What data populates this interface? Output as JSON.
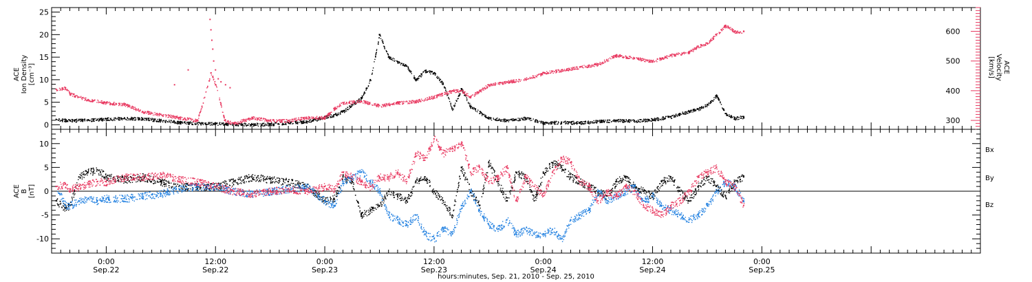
{
  "colors": {
    "black": "#000000",
    "pink": "#e8375f",
    "blue": "#1f7fe0"
  },
  "chart_data": {
    "type": "scatter",
    "title": "",
    "xlabel": "hours:minutes, Sep. 21, 2010 - Sep. 25, 2010",
    "x_unit": "hours since 2010-09-21 00:00",
    "xlim": [
      18,
      120
    ],
    "x_ticks": [
      {
        "x": 24,
        "time": "0:00",
        "date": "Sep.22"
      },
      {
        "x": 36,
        "time": "12:00",
        "date": "Sep.22"
      },
      {
        "x": 48,
        "time": "0:00",
        "date": "Sep.23"
      },
      {
        "x": 60,
        "time": "12:00",
        "date": "Sep.23"
      },
      {
        "x": 72,
        "time": "0:00",
        "date": "Sep.24"
      },
      {
        "x": 84,
        "time": "12:00",
        "date": "Sep.24"
      },
      {
        "x": 96,
        "time": "0:00",
        "date": "Sep.25"
      }
    ],
    "panels": [
      {
        "name": "top",
        "left_axis": {
          "label_lines": [
            "ACE",
            "Ion Density",
            "[cm⁻³]"
          ],
          "ylim": [
            -1,
            26
          ],
          "ticks": [
            "0",
            "5",
            "10",
            "15",
            "20",
            "25"
          ],
          "tick_values": [
            0,
            5,
            10,
            15,
            20,
            25
          ]
        },
        "right_axis": {
          "label_lines": [
            "ACE",
            "Velocity",
            "[km/s]"
          ],
          "ylim": [
            270,
            680
          ],
          "ticks": [
            "300",
            "400",
            "500",
            "600"
          ],
          "tick_values": [
            300,
            400,
            500,
            600
          ]
        },
        "series": [
          {
            "axis": "left",
            "color": "#000000",
            "x": [
              18.5,
              20,
              22,
              24,
              26,
              28,
              30,
              32,
              34,
              36,
              38,
              40,
              42,
              44,
              46,
              47,
              48,
              49,
              50,
              51,
              52,
              53,
              54,
              55,
              56,
              57,
              58,
              59,
              60,
              61,
              62,
              63,
              64,
              66,
              68,
              70,
              72,
              74,
              76,
              78,
              80,
              82,
              84,
              86,
              87,
              88,
              89,
              90,
              91,
              92,
              93,
              94
            ],
            "y": [
              1.2,
              1.0,
              1.1,
              1.3,
              1.5,
              1.4,
              1.0,
              0.6,
              0.4,
              0.3,
              0.2,
              0.1,
              0.2,
              0.5,
              0.8,
              1.2,
              1.8,
              2.2,
              3.0,
              4.5,
              6.0,
              10.0,
              20.0,
              15.0,
              14.0,
              13.0,
              10.0,
              12.0,
              11.5,
              9.0,
              3.5,
              8.0,
              4.0,
              1.5,
              1.0,
              1.5,
              0.5,
              0.6,
              0.5,
              0.8,
              1.0,
              0.9,
              1.2,
              1.8,
              2.5,
              3.0,
              3.5,
              4.5,
              6.5,
              2.5,
              1.5,
              1.8
            ]
          },
          {
            "axis": "right",
            "color": "#e8375f",
            "x": [
              18.5,
              19.5,
              20,
              22,
              24,
              26,
              28,
              30,
              32,
              34,
              35.5,
              36,
              37,
              38,
              40,
              42,
              44,
              46,
              48,
              49,
              50,
              52,
              54,
              56,
              58,
              60,
              62,
              63,
              64,
              66,
              68,
              70,
              72,
              74,
              76,
              78,
              80,
              82,
              84,
              86,
              88,
              89,
              90,
              91,
              92,
              93,
              94
            ],
            "y": [
              405,
              410,
              390,
              370,
              360,
              355,
              330,
              320,
              310,
              300,
              460,
              420,
              300,
              290,
              310,
              300,
              300,
              310,
              310,
              340,
              360,
              365,
              350,
              360,
              365,
              380,
              400,
              400,
              380,
              420,
              430,
              440,
              460,
              470,
              480,
              490,
              520,
              510,
              500,
              520,
              530,
              550,
              560,
              590,
              620,
              600,
              600
            ]
          },
          {
            "axis": "right",
            "color": "#e8375f",
            "style": "sparse",
            "x": [
              35.4,
              35.5,
              35.6,
              35.7,
              35.8,
              36.0,
              36.3,
              36.6,
              37.1,
              37.6,
              33.0,
              31.5
            ],
            "y": [
              640,
              605,
              570,
              540,
              500,
              470,
              440,
              430,
              420,
              410,
              470,
              420
            ]
          }
        ]
      },
      {
        "name": "bottom",
        "left_axis": {
          "label_lines": [
            "ACE",
            "B",
            "[nT]"
          ],
          "ylim": [
            -13,
            13
          ],
          "ticks": [
            "-10",
            "-5",
            "0",
            "5",
            "10"
          ],
          "tick_values": [
            -10,
            -5,
            0,
            5,
            10
          ]
        },
        "zero_line": true,
        "legend": {
          "placement": "right",
          "entries": [
            "Bx",
            "By",
            "Bz"
          ]
        },
        "series": [
          {
            "name": "Bx",
            "color": "#000000",
            "x": [
              18.5,
              19.5,
              20,
              21,
              22,
              23,
              24,
              26,
              28,
              30,
              32,
              34,
              36,
              38,
              40,
              42,
              44,
              46,
              48,
              49,
              50,
              51,
              52,
              53,
              54,
              55,
              56,
              57,
              58,
              59,
              60,
              61,
              62,
              63,
              64,
              65,
              66,
              67,
              68,
              69,
              70,
              71,
              72,
              73,
              74,
              75,
              76,
              77,
              78,
              79,
              80,
              81,
              82,
              83,
              84,
              85,
              86,
              87,
              88,
              89,
              90,
              91,
              92,
              93,
              94
            ],
            "y": [
              -2,
              -3.5,
              -3,
              3,
              4,
              4.5,
              3,
              2.5,
              3,
              2,
              1,
              1,
              1,
              2,
              3,
              2.5,
              2,
              1,
              -2,
              -1.5,
              3,
              2,
              -5,
              -4,
              -3,
              0,
              -1,
              -2,
              2,
              3,
              0,
              -2,
              -5,
              5,
              0,
              -3,
              6,
              2,
              -2,
              4,
              3,
              -2,
              4,
              6,
              5,
              3,
              2,
              1,
              0,
              -1,
              2,
              3,
              1,
              0,
              -1,
              2,
              3,
              0,
              -2,
              1,
              3,
              1,
              -1,
              2,
              3
            ]
          },
          {
            "name": "By",
            "color": "#1f7fe0",
            "x": [
              18.5,
              19.5,
              20,
              21,
              22,
              23,
              24,
              26,
              28,
              30,
              32,
              34,
              36,
              38,
              40,
              42,
              44,
              46,
              48,
              49,
              50,
              51,
              52,
              53,
              54,
              55,
              56,
              57,
              58,
              59,
              60,
              61,
              62,
              63,
              64,
              65,
              66,
              67,
              68,
              69,
              70,
              71,
              72,
              73,
              74,
              75,
              76,
              77,
              78,
              79,
              80,
              81,
              82,
              83,
              84,
              85,
              86,
              87,
              88,
              89,
              90,
              91,
              92,
              93,
              94
            ],
            "y": [
              1,
              -3,
              -3,
              -2,
              -1.5,
              -2,
              -1.5,
              -1.5,
              -1,
              -0.5,
              0.5,
              1,
              1,
              0,
              -0.5,
              0,
              0.5,
              1,
              -2,
              -3,
              2,
              3,
              4,
              2,
              0,
              -5,
              -6,
              -7,
              -5,
              -9,
              -10,
              -8,
              -9,
              -3,
              0,
              -4,
              -7,
              -8,
              -6,
              -9,
              -8,
              -9,
              -9,
              -8,
              -10,
              -6,
              -5,
              -4,
              0,
              -2,
              -1,
              0,
              1,
              -2,
              -1,
              -3,
              -4,
              -5,
              -6,
              -5,
              -3,
              0,
              2,
              1,
              -2
            ]
          },
          {
            "name": "Bz",
            "color": "#e8375f",
            "x": [
              18.5,
              19.5,
              20,
              21,
              22,
              23,
              24,
              26,
              28,
              30,
              32,
              34,
              36,
              38,
              40,
              42,
              44,
              46,
              48,
              49,
              50,
              51,
              52,
              53,
              54,
              55,
              56,
              57,
              58,
              59,
              60,
              61,
              62,
              63,
              64,
              65,
              66,
              67,
              68,
              69,
              70,
              71,
              72,
              73,
              74,
              75,
              76,
              77,
              78,
              79,
              80,
              81,
              82,
              83,
              84,
              85,
              86,
              87,
              88,
              89,
              90,
              91,
              92,
              93,
              94
            ],
            "y": [
              1,
              1.5,
              0.5,
              1,
              1.5,
              2,
              2,
              3,
              3,
              3.5,
              2.5,
              2,
              1,
              0,
              -0.5,
              0,
              0.5,
              0,
              1,
              0.5,
              4,
              3,
              2,
              1,
              3,
              3,
              4,
              2,
              8,
              7,
              11,
              8,
              9,
              10,
              4,
              5,
              2,
              3,
              5,
              -2,
              3,
              1,
              -1,
              4,
              7,
              6,
              2,
              1,
              -2,
              0,
              -1,
              1,
              0,
              -3,
              -4,
              -5,
              -3,
              -2,
              0,
              3,
              4,
              5,
              2,
              1,
              -3
            ]
          }
        ]
      }
    ]
  }
}
